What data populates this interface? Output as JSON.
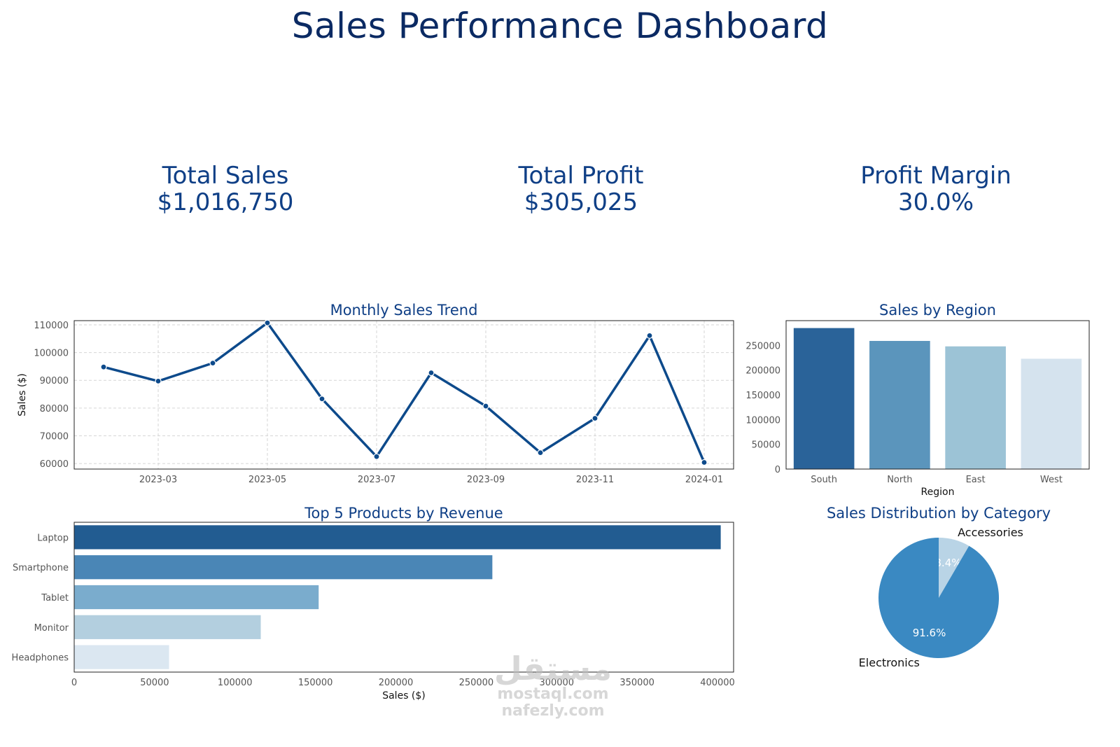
{
  "title": "Sales Performance Dashboard",
  "kpis": [
    {
      "label": "Total Sales",
      "value": "$1,016,750"
    },
    {
      "label": "Total Profit",
      "value": "$305,025"
    },
    {
      "label": "Profit Margin",
      "value": "30.0%"
    }
  ],
  "colors": {
    "line": "#0d4a8b",
    "region_bars": [
      "#2a6399",
      "#5b95bc",
      "#9cc3d6",
      "#d5e3ee"
    ],
    "product_bars": [
      "#225c91",
      "#4a86b6",
      "#7aaccd",
      "#b3cfdf",
      "#dbe7f1"
    ],
    "pie": [
      "#3a89c2",
      "#b9d4e6"
    ]
  },
  "watermark": {
    "logo": "مستقل",
    "line1": "mostaql.com",
    "line2": "nafezly.com"
  },
  "chart_data": [
    {
      "type": "line",
      "title": "Monthly Sales Trend",
      "xlabel": "",
      "ylabel": "Sales ($)",
      "x": [
        "2023-02",
        "2023-03",
        "2023-04",
        "2023-05",
        "2023-06",
        "2023-07",
        "2023-08",
        "2023-09",
        "2023-10",
        "2023-11",
        "2023-12",
        "2024-01"
      ],
      "y": [
        94800,
        89700,
        96200,
        110700,
        83300,
        62500,
        92700,
        80700,
        63900,
        76300,
        106100,
        60400
      ],
      "x_ticks": [
        "2023-03",
        "2023-05",
        "2023-07",
        "2023-09",
        "2023-11",
        "2024-01"
      ],
      "y_ticks": [
        60000,
        70000,
        80000,
        90000,
        100000,
        110000
      ],
      "ylim": [
        58000,
        111500
      ],
      "grid": true
    },
    {
      "type": "bar",
      "title": "Sales by Region",
      "xlabel": "Region",
      "ylabel": "",
      "categories": [
        "South",
        "North",
        "East",
        "West"
      ],
      "values": [
        285000,
        259000,
        248000,
        223000
      ],
      "y_ticks": [
        0,
        50000,
        100000,
        150000,
        200000,
        250000
      ],
      "ylim": [
        0,
        300000
      ]
    },
    {
      "type": "bar",
      "orientation": "horizontal",
      "title": "Top 5 Products by Revenue",
      "xlabel": "Sales ($)",
      "ylabel": "",
      "categories": [
        "Laptop",
        "Smartphone",
        "Tablet",
        "Monitor",
        "Headphones"
      ],
      "values": [
        402000,
        260000,
        152000,
        116000,
        59000
      ],
      "x_ticks": [
        0,
        50000,
        100000,
        150000,
        200000,
        250000,
        300000,
        350000,
        400000
      ],
      "xlim": [
        0,
        410000
      ]
    },
    {
      "type": "pie",
      "title": "Sales Distribution by Category",
      "labels": [
        "Electronics",
        "Accessories"
      ],
      "values": [
        91.6,
        8.4
      ],
      "pct_labels": [
        "91.6%",
        "8.4%"
      ]
    }
  ]
}
